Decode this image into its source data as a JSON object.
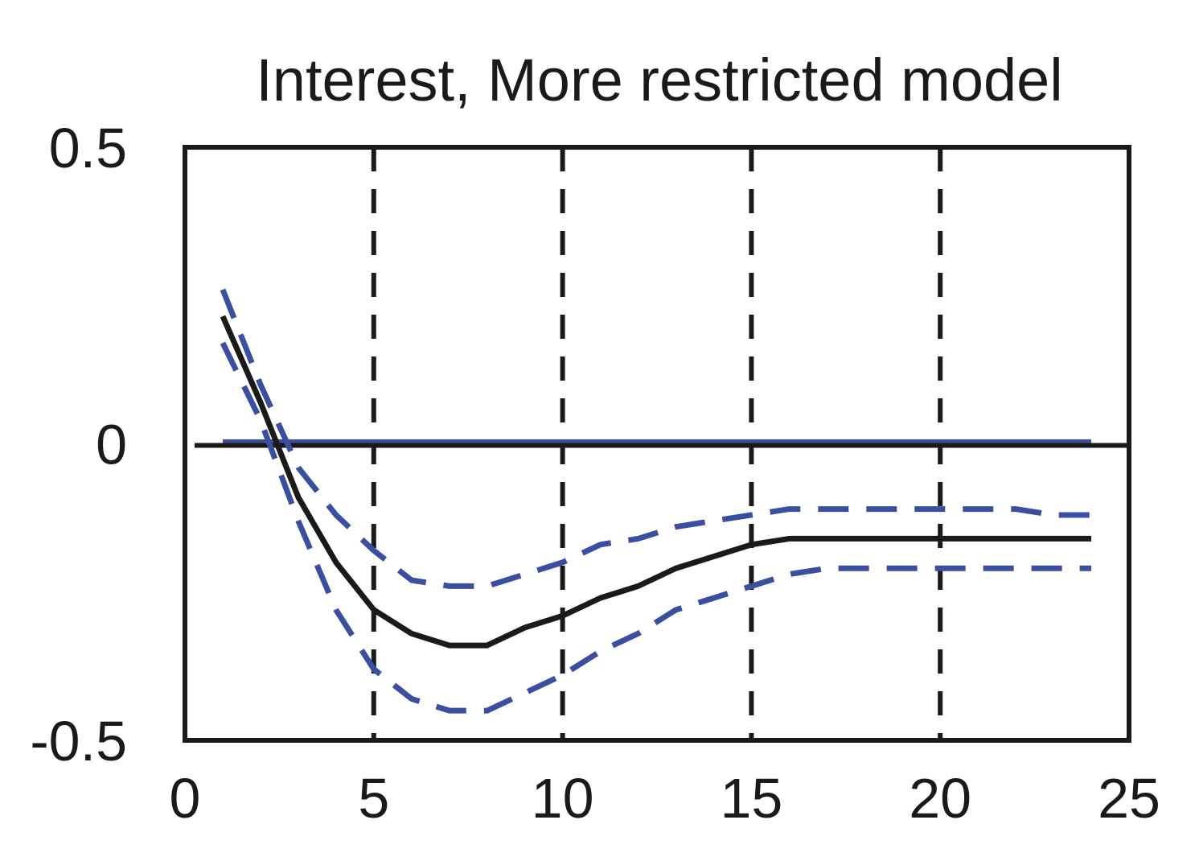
{
  "chart_data": {
    "type": "line",
    "title": "Interest, More restricted model",
    "xlabel": "",
    "ylabel": "",
    "xlim": [
      0,
      25
    ],
    "ylim": [
      -0.5,
      0.5
    ],
    "xticks": [
      0,
      5,
      10,
      15,
      20,
      25
    ],
    "yticks": [
      0.5,
      0,
      -0.5
    ],
    "xtick_labels": [
      "0",
      "5",
      "10",
      "15",
      "20",
      "25"
    ],
    "ytick_labels": [
      "0.5",
      "0",
      "-0.5"
    ],
    "vertical_reference_lines": [
      5,
      10,
      15,
      20
    ],
    "zero_line": 0,
    "x": [
      1,
      2,
      3,
      4,
      5,
      6,
      7,
      8,
      9,
      10,
      11,
      12,
      13,
      14,
      15,
      16,
      17,
      18,
      19,
      20,
      21,
      22,
      23,
      24
    ],
    "series": [
      {
        "style": "solid",
        "color": "#1a1a1a",
        "values": [
          0.215,
          0.07,
          -0.09,
          -0.2,
          -0.28,
          -0.32,
          -0.34,
          -0.34,
          -0.31,
          -0.29,
          -0.26,
          -0.24,
          -0.21,
          -0.19,
          -0.17,
          -0.16,
          -0.16,
          -0.16,
          -0.16,
          -0.16,
          -0.16,
          -0.16,
          -0.16,
          -0.16
        ]
      },
      {
        "style": "dashed",
        "color": "#3a4fa0",
        "values": [
          0.26,
          0.1,
          -0.04,
          -0.12,
          -0.18,
          -0.23,
          -0.24,
          -0.24,
          -0.22,
          -0.2,
          -0.17,
          -0.16,
          -0.14,
          -0.13,
          -0.12,
          -0.11,
          -0.11,
          -0.11,
          -0.11,
          -0.11,
          -0.11,
          -0.11,
          -0.12,
          -0.12
        ]
      },
      {
        "style": "dashed",
        "color": "#3a4fa0",
        "values": [
          0.17,
          0.04,
          -0.13,
          -0.28,
          -0.38,
          -0.43,
          -0.45,
          -0.45,
          -0.42,
          -0.39,
          -0.35,
          -0.32,
          -0.28,
          -0.26,
          -0.24,
          -0.22,
          -0.21,
          -0.21,
          -0.21,
          -0.21,
          -0.21,
          -0.21,
          -0.21,
          -0.21
        ]
      }
    ],
    "grid": false,
    "colors": {
      "axis": "#1a1a1a",
      "band": "#3a4fa0",
      "zero_line_blue": "#3a4fa0"
    }
  }
}
